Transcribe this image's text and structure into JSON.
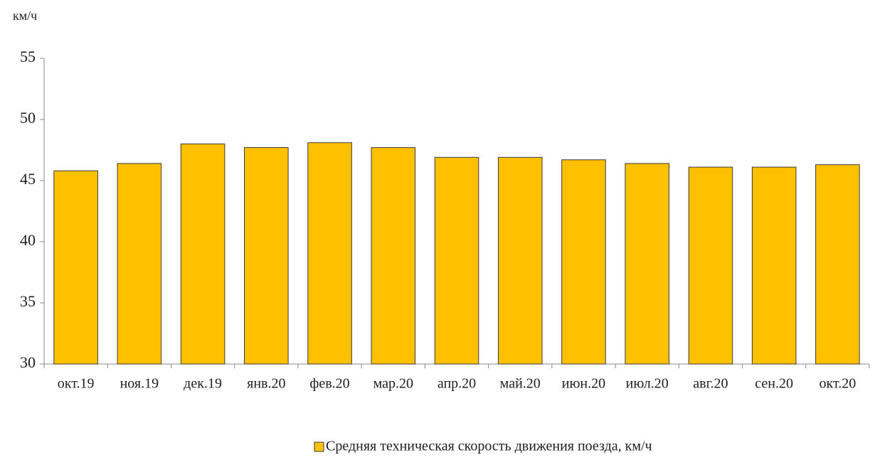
{
  "chart_data": {
    "type": "bar",
    "axis_label": "км/ч",
    "categories": [
      "окт.19",
      "ноя.19",
      "дек.19",
      "янв.20",
      "фев.20",
      "мар.20",
      "апр.20",
      "май.20",
      "июн.20",
      "июл.20",
      "авг.20",
      "сен.20",
      "окт.20"
    ],
    "series": [
      {
        "name": "Средняя техническая скорость движения поезда, км/ч",
        "color": "#ffc000",
        "values": [
          45.8,
          46.4,
          48.0,
          47.7,
          48.1,
          47.7,
          46.9,
          46.9,
          46.7,
          46.4,
          46.1,
          46.1,
          46.3
        ]
      }
    ],
    "ylim": [
      30,
      55
    ],
    "yticks": [
      30,
      35,
      40,
      45,
      50,
      55
    ],
    "grid": false,
    "legend": "bottom"
  }
}
